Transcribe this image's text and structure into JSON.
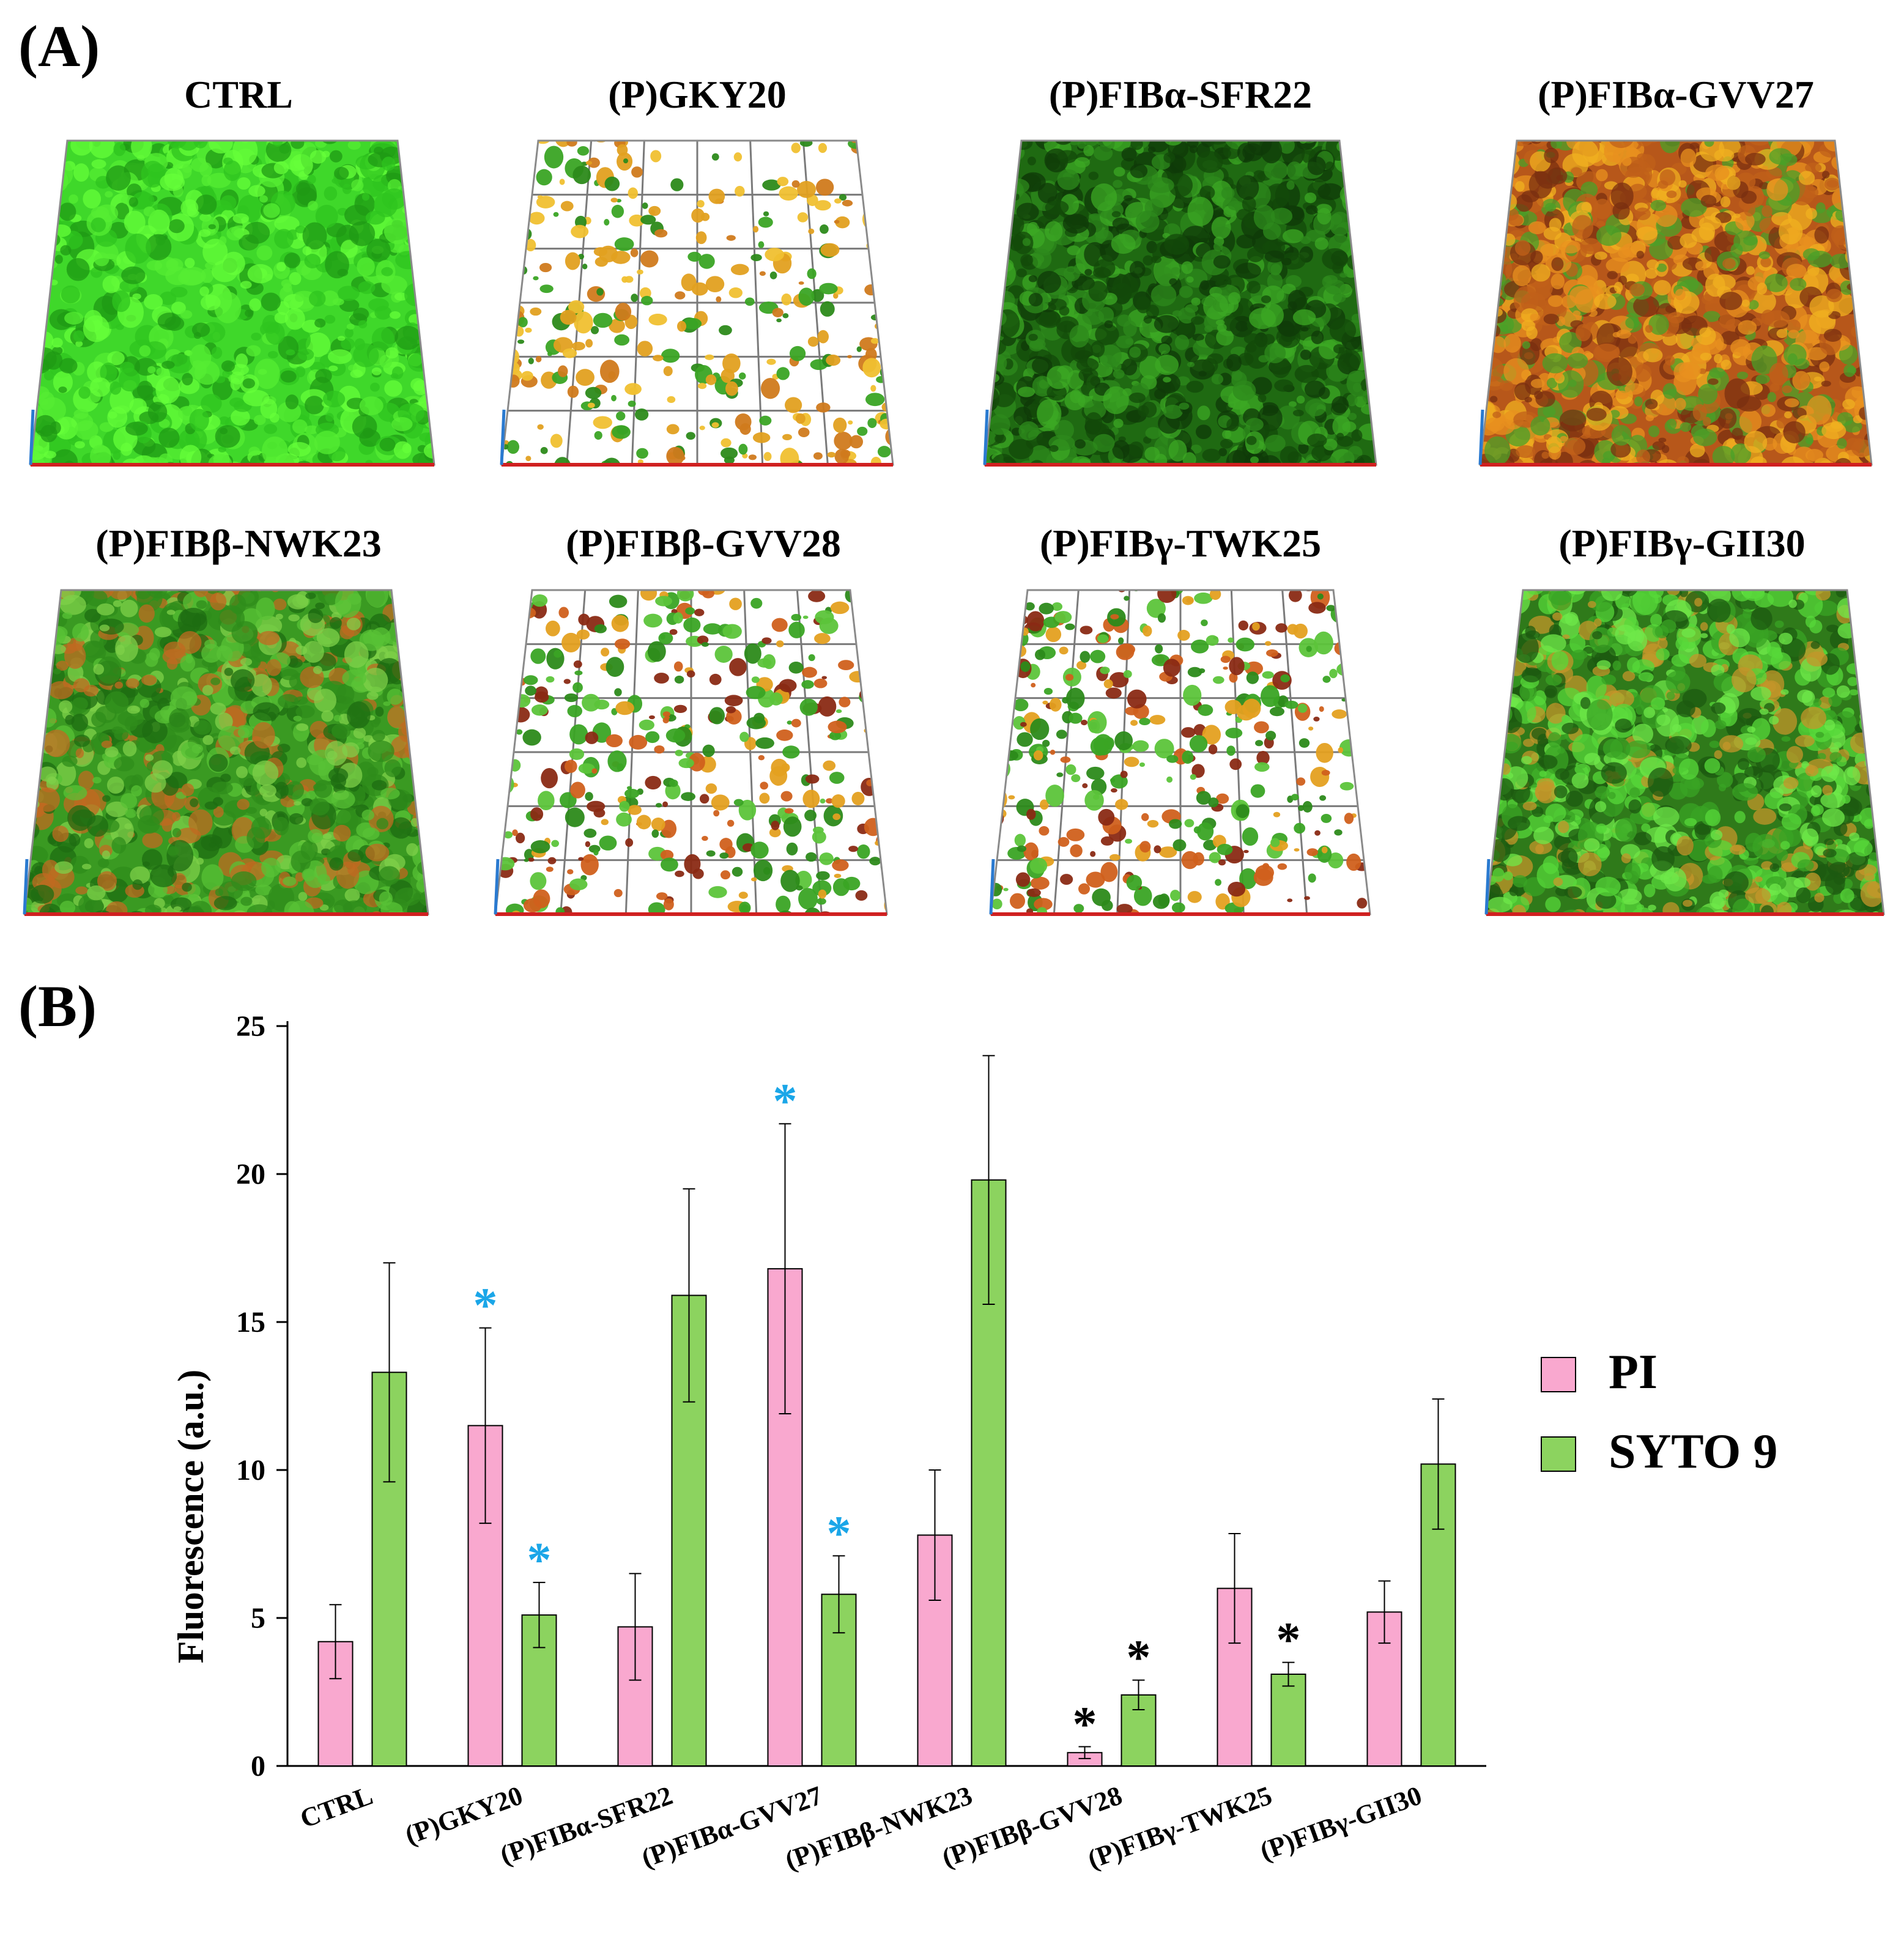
{
  "panel_a": {
    "letter": "(A)",
    "images": [
      {
        "title": "CTRL",
        "style": "dense-green"
      },
      {
        "title": "(P)GKY20",
        "style": "sparse-orange"
      },
      {
        "title": "(P)FIBα-SFR22",
        "style": "dense-darkgreen"
      },
      {
        "title": "(P)FIBα-GVV27",
        "style": "dense-orange"
      },
      {
        "title": "(P)FIBβ-NWK23",
        "style": "dense-green-mixed"
      },
      {
        "title": "(P)FIBβ-GVV28",
        "style": "sparse-mixed"
      },
      {
        "title": "(P)FIBγ-TWK25",
        "style": "sparse-mixed"
      },
      {
        "title": "(P)FIBγ-GII30",
        "style": "dense-green-blobs"
      }
    ]
  },
  "panel_b": {
    "letter": "(B)"
  },
  "chart_data": {
    "type": "bar",
    "ylabel": "Fluorescence (a.u.)",
    "ylim": [
      0,
      25
    ],
    "yticks": [
      0,
      5,
      10,
      15,
      20,
      25
    ],
    "categories": [
      "CTRL",
      "(P)GKY20",
      "(P)FIBα-SFR22",
      "(P)FIBα-GVV27",
      "(P)FIBβ-NWK23",
      "(P)FIBβ-GVV28",
      "(P)FIBγ-TWK25",
      "(P)FIBγ-GII30"
    ],
    "series": [
      {
        "name": "PI",
        "color": "#f9a8cf",
        "values": [
          4.2,
          11.5,
          4.7,
          16.8,
          7.8,
          0.45,
          6.0,
          5.2
        ],
        "errors": [
          1.25,
          3.3,
          1.8,
          4.9,
          2.2,
          0.2,
          1.85,
          1.05
        ],
        "markers": [
          "",
          "*",
          "",
          "*",
          "",
          "*",
          "",
          ""
        ],
        "marker_colors": [
          "",
          "#1aa6e8",
          "",
          "#1aa6e8",
          "",
          "#000000",
          "",
          ""
        ]
      },
      {
        "name": "SYTO 9",
        "color": "#8cd35f",
        "values": [
          13.3,
          5.1,
          15.9,
          5.8,
          19.8,
          2.4,
          3.1,
          10.2
        ],
        "errors": [
          3.7,
          1.1,
          3.6,
          1.3,
          4.2,
          0.5,
          0.4,
          2.2
        ],
        "markers": [
          "",
          "*",
          "",
          "*",
          "",
          "*",
          "*",
          ""
        ],
        "marker_colors": [
          "",
          "#1aa6e8",
          "",
          "#1aa6e8",
          "",
          "#000000",
          "#000000",
          ""
        ]
      }
    ],
    "legend": {
      "placement": "right",
      "entries": [
        "PI",
        "SYTO 9"
      ]
    }
  }
}
